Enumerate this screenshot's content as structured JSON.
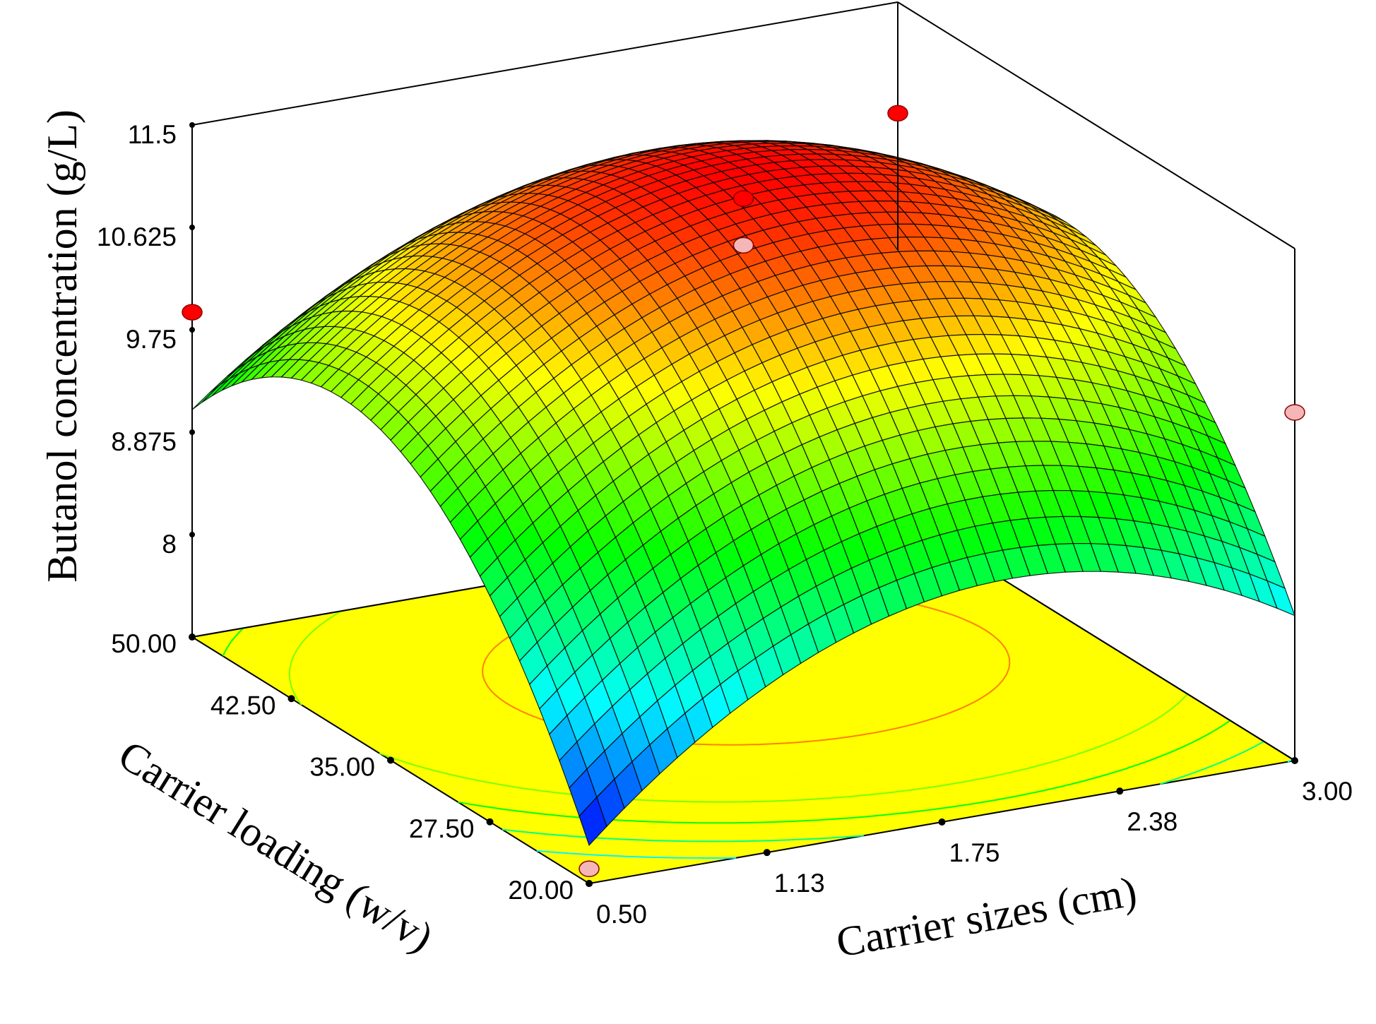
{
  "chart_data": {
    "type": "surface3d",
    "title": "",
    "zlabel": "Butanol concentration (g/L)",
    "xlabel": "Carrier sizes (cm)",
    "ylabel": "Carrier loading (w/v)",
    "x_range": [
      0.5,
      3.0
    ],
    "y_range": [
      20.0,
      50.0
    ],
    "z_range": [
      7.125,
      11.5
    ],
    "x_ticks": [
      "0.50",
      "1.13",
      "1.75",
      "2.38",
      "3.00"
    ],
    "y_ticks": [
      "20.00",
      "27.50",
      "35.00",
      "42.50",
      "50.00"
    ],
    "z_ticks": [
      "8",
      "8.875",
      "9.75",
      "10.625",
      "11.5"
    ],
    "surface_model": {
      "center_x": 1.9,
      "center_y": 38.0,
      "peak_z": 11.4,
      "x_half_width": 1.25,
      "y_half_width": 15.0,
      "x_curvature": 1.15,
      "y_curvature": 1.6,
      "xy_interaction": 0.15
    },
    "design_points": [
      {
        "x": 0.5,
        "y": 50.0,
        "z": 9.9,
        "above_surface": true
      },
      {
        "x": 1.75,
        "y": 35.0,
        "z": 11.4,
        "above_surface": true
      },
      {
        "x": 1.75,
        "y": 35.0,
        "z": 11.0,
        "above_surface": false
      },
      {
        "x": 3.0,
        "y": 50.0,
        "z": 10.55,
        "above_surface": true
      },
      {
        "x": 3.0,
        "y": 20.0,
        "z": 10.1,
        "above_surface": false
      },
      {
        "x": 0.5,
        "y": 20.0,
        "z": 7.25,
        "above_surface": false
      }
    ],
    "contour_levels": [
      8.4,
      8.9,
      9.4,
      9.9,
      10.4,
      10.9
    ],
    "colors": {
      "floor": "#ffff00",
      "point_above": "#ff0000",
      "point_below": "#f4b6b6",
      "colormap": [
        "#0000ff",
        "#00ffff",
        "#00ff00",
        "#ffff00",
        "#ff0000"
      ]
    },
    "grid": false,
    "legend": "none"
  }
}
